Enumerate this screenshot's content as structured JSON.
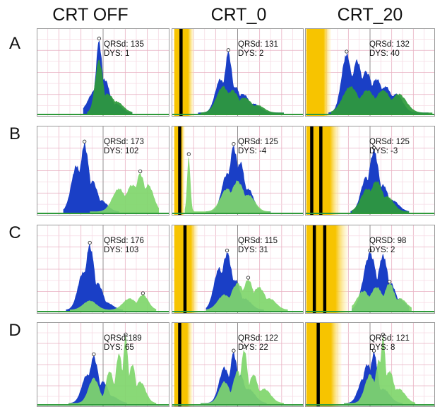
{
  "column_headers": [
    "CRT OFF",
    "CRT_0",
    "CRT_20"
  ],
  "row_labels": [
    "A",
    "B",
    "C",
    "D"
  ],
  "colors": {
    "blue_series": "#1a3fc6",
    "green_series": "#2e9a3a",
    "light_green_series": "#7fd66b",
    "pacing_band": "#f7c400",
    "grid_major": "#e8b0c2",
    "grid_minor": "#f6dbe4",
    "center_line": "#8a8a8a",
    "pacing_spike": "#000000"
  },
  "chart_data": [
    {
      "type": "area",
      "row": "A",
      "column": "CRT OFF",
      "annotation": [
        "QRSd: 135",
        "DYS: 1"
      ],
      "qrsd": 135,
      "dys": 1,
      "pacing": [],
      "blue": {
        "peaks": [
          [
            0.47,
            0.95,
            0.025
          ],
          [
            0.51,
            0.45,
            0.04
          ],
          [
            0.44,
            0.3,
            0.05
          ],
          [
            0.55,
            0.22,
            0.03
          ],
          [
            0.6,
            0.12,
            0.04
          ]
        ],
        "start": 0.35,
        "end": 0.72
      },
      "green": {
        "peaks": [
          [
            0.47,
            0.7,
            0.03
          ],
          [
            0.53,
            0.25,
            0.06
          ],
          [
            0.6,
            0.15,
            0.05
          ]
        ],
        "start": 0.38,
        "end": 0.72,
        "tint": "dark"
      }
    },
    {
      "type": "area",
      "row": "A",
      "column": "CRT_0",
      "annotation": [
        "QRSd: 131",
        "DYS: 2"
      ],
      "qrsd": 131,
      "dys": 2,
      "pacing": [
        {
          "band": [
            0.02,
            0.17
          ],
          "spikes": [
            0.07
          ]
        }
      ],
      "blue": {
        "peaks": [
          [
            0.43,
            0.8,
            0.03
          ],
          [
            0.37,
            0.45,
            0.04
          ],
          [
            0.48,
            0.35,
            0.04
          ],
          [
            0.54,
            0.25,
            0.05
          ],
          [
            0.62,
            0.12,
            0.05
          ]
        ],
        "start": 0.2,
        "end": 0.85
      },
      "green": {
        "peaks": [
          [
            0.39,
            0.35,
            0.05
          ],
          [
            0.46,
            0.3,
            0.05
          ],
          [
            0.55,
            0.2,
            0.06
          ],
          [
            0.65,
            0.1,
            0.05
          ]
        ],
        "start": 0.22,
        "end": 0.85,
        "tint": "dark"
      }
    },
    {
      "type": "area",
      "row": "A",
      "column": "CRT_20",
      "annotation": [
        "QRSd: 132",
        "DYS: 40"
      ],
      "qrsd": 132,
      "dys": 40,
      "pacing": [
        {
          "band": [
            0.01,
            0.2
          ],
          "spikes": []
        }
      ],
      "blue": {
        "peaks": [
          [
            0.32,
            0.78,
            0.04
          ],
          [
            0.4,
            0.7,
            0.04
          ],
          [
            0.47,
            0.55,
            0.05
          ],
          [
            0.55,
            0.45,
            0.05
          ],
          [
            0.62,
            0.35,
            0.05
          ],
          [
            0.7,
            0.25,
            0.05
          ]
        ],
        "start": 0.18,
        "end": 0.95
      },
      "green": {
        "peaks": [
          [
            0.35,
            0.35,
            0.06
          ],
          [
            0.48,
            0.3,
            0.06
          ],
          [
            0.6,
            0.3,
            0.06
          ],
          [
            0.72,
            0.25,
            0.06
          ]
        ],
        "start": 0.2,
        "end": 0.98,
        "tint": "dark"
      }
    },
    {
      "type": "area",
      "row": "B",
      "column": "CRT OFF",
      "annotation": [
        "QRSd: 173",
        "DYS: 102"
      ],
      "qrsd": 173,
      "dys": 102,
      "pacing": [],
      "blue": {
        "peaks": [
          [
            0.36,
            0.88,
            0.035
          ],
          [
            0.3,
            0.6,
            0.04
          ],
          [
            0.42,
            0.4,
            0.04
          ],
          [
            0.48,
            0.15,
            0.05
          ]
        ],
        "start": 0.2,
        "end": 0.62
      },
      "green": {
        "peaks": [
          [
            0.62,
            0.3,
            0.05
          ],
          [
            0.72,
            0.35,
            0.05
          ],
          [
            0.78,
            0.5,
            0.035
          ],
          [
            0.84,
            0.35,
            0.04
          ]
        ],
        "start": 0.4,
        "end": 0.92,
        "tint": "light"
      }
    },
    {
      "type": "area",
      "row": "B",
      "column": "CRT_0",
      "annotation": [
        "QRSd: 125",
        "DYS: -4"
      ],
      "qrsd": 125,
      "dys": -4,
      "pacing": [
        {
          "band": [
            0.02,
            0.1
          ],
          "spikes": [
            0.06
          ]
        }
      ],
      "blue": {
        "peaks": [
          [
            0.47,
            0.85,
            0.035
          ],
          [
            0.52,
            0.65,
            0.035
          ],
          [
            0.42,
            0.5,
            0.04
          ],
          [
            0.58,
            0.3,
            0.04
          ]
        ],
        "start": 0.26,
        "end": 0.75
      },
      "green": {
        "peaks": [
          [
            0.13,
            0.72,
            0.012
          ],
          [
            0.42,
            0.3,
            0.05
          ],
          [
            0.5,
            0.4,
            0.05
          ],
          [
            0.58,
            0.22,
            0.05
          ]
        ],
        "start": 0.1,
        "end": 0.75,
        "tint": "light"
      }
    },
    {
      "type": "area",
      "row": "B",
      "column": "CRT_20",
      "annotation": [
        "QRSd: 125",
        "DYS: -3"
      ],
      "qrsd": 125,
      "dys": -3,
      "pacing": [
        {
          "band": [
            0.01,
            0.27
          ],
          "spikes": [
            0.05,
            0.12
          ]
        }
      ],
      "blue": {
        "peaks": [
          [
            0.53,
            0.8,
            0.04
          ],
          [
            0.47,
            0.45,
            0.04
          ],
          [
            0.6,
            0.35,
            0.04
          ],
          [
            0.67,
            0.15,
            0.05
          ]
        ],
        "start": 0.35,
        "end": 0.8
      },
      "green": {
        "peaks": [
          [
            0.48,
            0.3,
            0.05
          ],
          [
            0.55,
            0.4,
            0.05
          ],
          [
            0.63,
            0.2,
            0.05
          ]
        ],
        "start": 0.36,
        "end": 0.8,
        "tint": "dark"
      }
    },
    {
      "type": "area",
      "row": "C",
      "column": "CRT OFF",
      "annotation": [
        "QRSd: 176",
        "DYS: 103"
      ],
      "qrsd": 176,
      "dys": 103,
      "pacing": [],
      "blue": {
        "peaks": [
          [
            0.4,
            0.85,
            0.035
          ],
          [
            0.35,
            0.5,
            0.04
          ],
          [
            0.46,
            0.35,
            0.04
          ],
          [
            0.52,
            0.1,
            0.05
          ]
        ],
        "start": 0.22,
        "end": 0.65
      },
      "green": {
        "peaks": [
          [
            0.4,
            0.12,
            0.05
          ],
          [
            0.7,
            0.15,
            0.05
          ],
          [
            0.8,
            0.2,
            0.04
          ]
        ],
        "start": 0.25,
        "end": 0.9,
        "tint": "light"
      }
    },
    {
      "type": "area",
      "row": "C",
      "column": "CRT_0",
      "annotation": [
        "QRSd: 115",
        "DYS: 31"
      ],
      "qrsd": 115,
      "dys": 31,
      "pacing": [
        {
          "band": [
            0.02,
            0.2
          ],
          "spikes": [
            0.1
          ]
        }
      ],
      "blue": {
        "peaks": [
          [
            0.42,
            0.75,
            0.04
          ],
          [
            0.36,
            0.55,
            0.04
          ],
          [
            0.48,
            0.4,
            0.04
          ],
          [
            0.55,
            0.15,
            0.05
          ]
        ],
        "start": 0.26,
        "end": 0.7
      },
      "green": {
        "peaks": [
          [
            0.4,
            0.2,
            0.05
          ],
          [
            0.5,
            0.35,
            0.05
          ],
          [
            0.58,
            0.4,
            0.04
          ],
          [
            0.66,
            0.3,
            0.05
          ],
          [
            0.74,
            0.15,
            0.05
          ]
        ],
        "start": 0.26,
        "end": 0.88,
        "tint": "light"
      }
    },
    {
      "type": "area",
      "row": "C",
      "column": "CRT_20",
      "annotation": [
        "QRSD: 98",
        "DYS: 2"
      ],
      "qrsd": 98,
      "dys": 2,
      "pacing": [
        {
          "band": [
            0.01,
            0.33
          ],
          "spikes": [
            0.07,
            0.15
          ]
        }
      ],
      "blue": {
        "peaks": [
          [
            0.5,
            0.75,
            0.05
          ],
          [
            0.6,
            0.72,
            0.04
          ],
          [
            0.66,
            0.35,
            0.04
          ],
          [
            0.72,
            0.15,
            0.05
          ]
        ],
        "start": 0.36,
        "end": 0.8
      },
      "green": {
        "peaks": [
          [
            0.45,
            0.25,
            0.05
          ],
          [
            0.55,
            0.3,
            0.05
          ],
          [
            0.65,
            0.35,
            0.04
          ],
          [
            0.73,
            0.15,
            0.05
          ]
        ],
        "start": 0.36,
        "end": 0.82,
        "tint": "light"
      }
    },
    {
      "type": "area",
      "row": "D",
      "column": "CRT OFF",
      "annotation": [
        "QRSd:189",
        "DYS: 65"
      ],
      "qrsd": 189,
      "dys": 65,
      "pacing": [],
      "blue": {
        "peaks": [
          [
            0.43,
            0.65,
            0.035
          ],
          [
            0.38,
            0.4,
            0.04
          ],
          [
            0.5,
            0.3,
            0.04
          ],
          [
            0.56,
            0.1,
            0.05
          ]
        ],
        "start": 0.24,
        "end": 0.68
      },
      "green": {
        "peaks": [
          [
            0.43,
            0.35,
            0.04
          ],
          [
            0.55,
            0.45,
            0.03
          ],
          [
            0.62,
            0.7,
            0.025
          ],
          [
            0.67,
            0.92,
            0.02
          ],
          [
            0.72,
            0.55,
            0.025
          ],
          [
            0.78,
            0.3,
            0.04
          ]
        ],
        "start": 0.24,
        "end": 0.9,
        "tint": "light"
      }
    },
    {
      "type": "area",
      "row": "D",
      "column": "CRT_0",
      "annotation": [
        "QRSd: 122",
        "DYS: 22"
      ],
      "qrsd": 122,
      "dys": 22,
      "pacing": [
        {
          "band": [
            0.02,
            0.16
          ],
          "spikes": [
            0.06
          ]
        }
      ],
      "blue": {
        "peaks": [
          [
            0.4,
            0.5,
            0.04
          ],
          [
            0.47,
            0.7,
            0.03
          ],
          [
            0.52,
            0.4,
            0.035
          ],
          [
            0.58,
            0.2,
            0.05
          ]
        ],
        "start": 0.22,
        "end": 0.72
      },
      "green": {
        "peaks": [
          [
            0.4,
            0.3,
            0.04
          ],
          [
            0.5,
            0.45,
            0.035
          ],
          [
            0.55,
            0.75,
            0.025
          ],
          [
            0.62,
            0.4,
            0.035
          ],
          [
            0.7,
            0.2,
            0.05
          ]
        ],
        "start": 0.22,
        "end": 0.85,
        "tint": "light"
      }
    },
    {
      "type": "area",
      "row": "D",
      "column": "CRT_20",
      "annotation": [
        "QRSd: 121",
        "DYS: 8"
      ],
      "qrsd": 121,
      "dys": 8,
      "pacing": [
        {
          "band": [
            0.01,
            0.28
          ],
          "spikes": [
            0.1
          ]
        }
      ],
      "blue": {
        "peaks": [
          [
            0.48,
            0.55,
            0.035
          ],
          [
            0.53,
            0.7,
            0.03
          ],
          [
            0.45,
            0.35,
            0.04
          ],
          [
            0.6,
            0.2,
            0.05
          ]
        ],
        "start": 0.3,
        "end": 0.75
      },
      "green": {
        "peaks": [
          [
            0.5,
            0.4,
            0.04
          ],
          [
            0.57,
            0.6,
            0.03
          ],
          [
            0.6,
            0.92,
            0.02
          ],
          [
            0.65,
            0.45,
            0.035
          ],
          [
            0.72,
            0.2,
            0.05
          ]
        ],
        "start": 0.3,
        "end": 0.85,
        "tint": "light"
      }
    }
  ]
}
